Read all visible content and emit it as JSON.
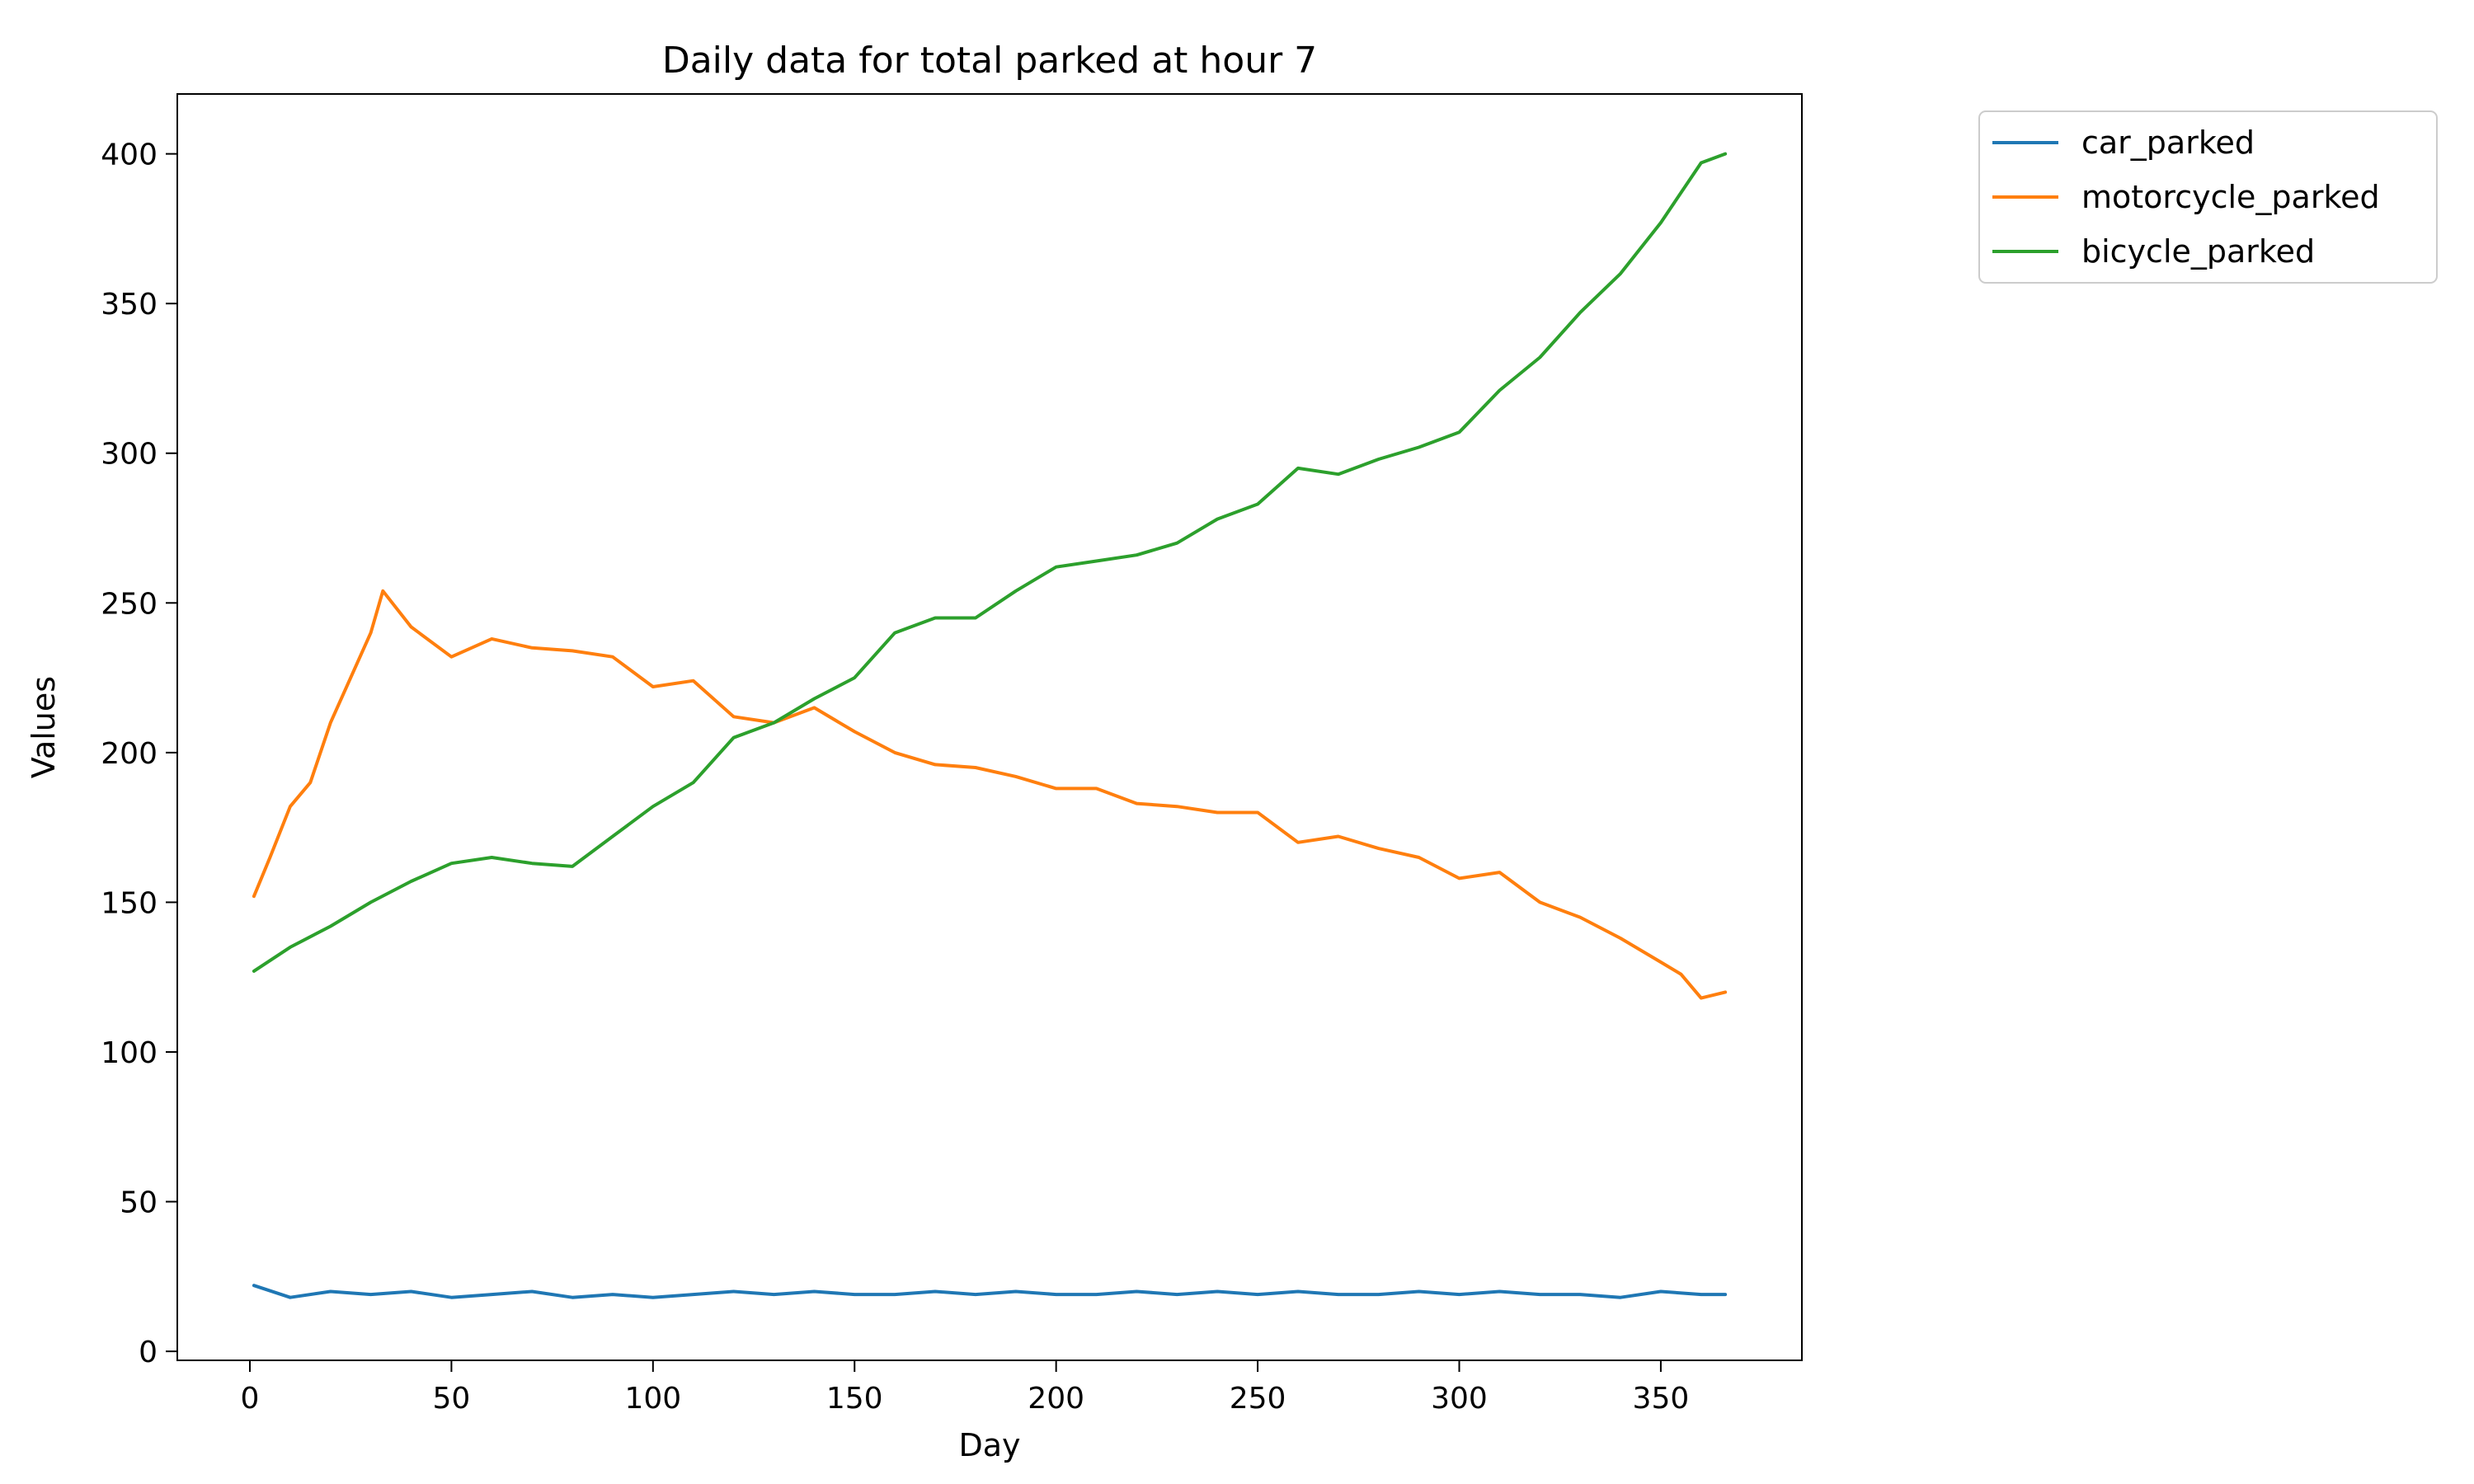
{
  "chart_data": {
    "type": "line",
    "title": "Daily data for total parked at hour 7",
    "xlabel": "Day",
    "ylabel": "Values",
    "xlim": [
      -18,
      385
    ],
    "ylim": [
      -3,
      420
    ],
    "xticks": [
      0,
      50,
      100,
      150,
      200,
      250,
      300,
      350
    ],
    "yticks": [
      0,
      50,
      100,
      150,
      200,
      250,
      300,
      350,
      400
    ],
    "grid": false,
    "legend_position": "outside-top-right",
    "series": [
      {
        "name": "car_parked",
        "color": "#1f77b4",
        "x": [
          1,
          10,
          20,
          30,
          40,
          50,
          60,
          70,
          80,
          90,
          100,
          110,
          120,
          130,
          140,
          150,
          160,
          170,
          180,
          190,
          200,
          210,
          220,
          230,
          240,
          250,
          260,
          270,
          280,
          290,
          300,
          310,
          320,
          330,
          340,
          350,
          360,
          366
        ],
        "y": [
          22,
          18,
          20,
          19,
          20,
          18,
          19,
          20,
          18,
          19,
          18,
          19,
          20,
          19,
          20,
          19,
          19,
          20,
          19,
          20,
          19,
          19,
          20,
          19,
          20,
          19,
          20,
          19,
          19,
          20,
          19,
          20,
          19,
          19,
          18,
          20,
          19,
          19
        ]
      },
      {
        "name": "motorcycle_parked",
        "color": "#ff7f0e",
        "x": [
          1,
          5,
          10,
          15,
          20,
          25,
          30,
          33,
          40,
          50,
          60,
          70,
          80,
          90,
          100,
          110,
          120,
          130,
          140,
          150,
          160,
          170,
          180,
          190,
          200,
          210,
          220,
          230,
          240,
          250,
          260,
          270,
          280,
          290,
          300,
          310,
          320,
          330,
          340,
          350,
          355,
          360,
          366
        ],
        "y": [
          152,
          165,
          182,
          190,
          210,
          225,
          240,
          254,
          242,
          232,
          238,
          235,
          234,
          232,
          222,
          224,
          212,
          210,
          215,
          207,
          200,
          196,
          195,
          192,
          188,
          188,
          183,
          182,
          180,
          180,
          170,
          172,
          168,
          165,
          158,
          160,
          150,
          145,
          138,
          130,
          126,
          118,
          120
        ]
      },
      {
        "name": "bicycle_parked",
        "color": "#2ca02c",
        "x": [
          1,
          10,
          20,
          30,
          40,
          50,
          60,
          70,
          80,
          90,
          100,
          110,
          120,
          130,
          140,
          150,
          160,
          170,
          180,
          190,
          200,
          210,
          220,
          230,
          240,
          250,
          260,
          270,
          280,
          290,
          300,
          310,
          320,
          330,
          340,
          350,
          360,
          366
        ],
        "y": [
          127,
          135,
          142,
          150,
          157,
          163,
          165,
          163,
          162,
          172,
          182,
          190,
          205,
          210,
          218,
          225,
          240,
          245,
          245,
          254,
          262,
          264,
          266,
          270,
          278,
          283,
          295,
          293,
          298,
          302,
          307,
          321,
          332,
          347,
          360,
          377,
          397,
          400
        ]
      }
    ]
  }
}
